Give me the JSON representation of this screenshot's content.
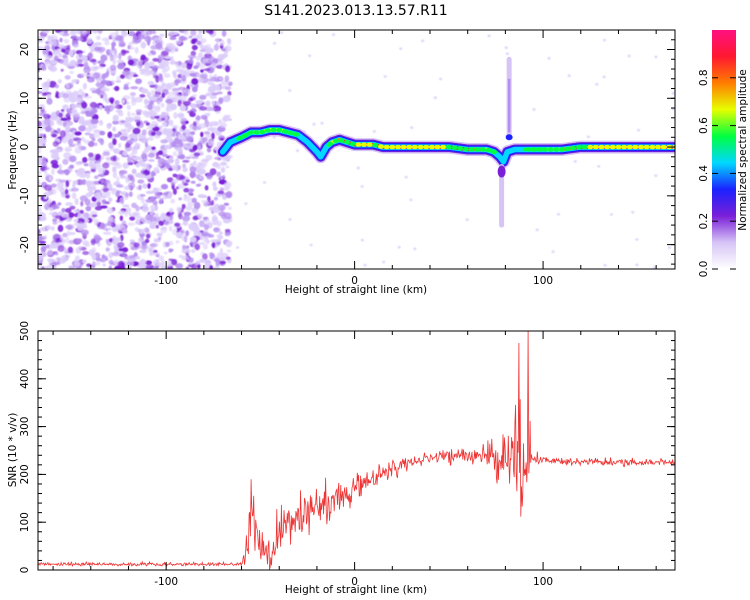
{
  "chart_data": [
    {
      "type": "heatmap",
      "title": "S141.2023.013.13.57.R11",
      "xlabel": "Height of straight line (km)",
      "ylabel": "Frequency (Hz)",
      "xlim": [
        -168,
        170
      ],
      "ylim": [
        -25,
        24
      ],
      "x_ticks": [
        -100,
        0,
        100
      ],
      "y_ticks": [
        -20,
        -10,
        0,
        10,
        20
      ],
      "noise_region_x": [
        -168,
        -70
      ],
      "ridge": {
        "x": [
          -70,
          -66,
          -60,
          -55,
          -50,
          -45,
          -40,
          -35,
          -30,
          -25,
          -20,
          -18,
          -15,
          -12,
          -8,
          -4,
          0,
          5,
          10,
          15,
          20,
          30,
          40,
          50,
          60,
          70,
          74,
          77,
          79,
          81,
          85,
          90,
          100,
          110,
          120,
          130,
          140,
          150,
          160,
          170
        ],
        "freq": [
          -1,
          1,
          2,
          3,
          3,
          3.5,
          3.5,
          3,
          2.5,
          1,
          -1,
          -2,
          0,
          1,
          1.5,
          1,
          0.5,
          0.5,
          0.5,
          0,
          0,
          0,
          0,
          0,
          -0.5,
          -0.5,
          -1,
          -2,
          -3,
          -1,
          -0.5,
          -0.5,
          -0.5,
          -0.5,
          0,
          0,
          0,
          0,
          0,
          0
        ],
        "amplitude": [
          0.2,
          0.4,
          0.55,
          0.6,
          0.65,
          0.7,
          0.65,
          0.6,
          0.5,
          0.35,
          0.2,
          0.3,
          0.45,
          0.65,
          0.8,
          0.85,
          0.9,
          0.95,
          0.9,
          0.92,
          0.95,
          0.95,
          0.95,
          0.9,
          0.85,
          0.7,
          0.5,
          0.3,
          0.2,
          0.2,
          0.4,
          0.5,
          0.6,
          0.7,
          0.9,
          0.95,
          0.95,
          0.95,
          0.95,
          0.95
        ]
      },
      "spike_x": 82,
      "colorbar": {
        "label": "Normalized spectral amplitude",
        "range": [
          0.0,
          1.0
        ],
        "ticks": [
          0.0,
          0.2,
          0.4,
          0.6,
          0.8
        ],
        "tick_labels": [
          "0.0",
          "0.2",
          "0.4",
          "0.6",
          "0.8"
        ],
        "colormap": [
          "#ffffff",
          "#d6c4f6",
          "#7a1fd8",
          "#1a22ff",
          "#00d8ff",
          "#00ff40",
          "#e6ff00",
          "#ff7d00",
          "#ff1830",
          "#ff1080"
        ]
      }
    },
    {
      "type": "line",
      "xlabel": "Height of straight line (km)",
      "ylabel": "SNR (10 * v/v)",
      "xlim": [
        -168,
        170
      ],
      "ylim": [
        0,
        500
      ],
      "x_ticks": [
        -100,
        0,
        100
      ],
      "y_ticks": [
        0,
        100,
        200,
        300,
        400,
        500
      ],
      "color": "#ee3333",
      "envelope": {
        "x": [
          -168,
          -110,
          -70,
          -60,
          -57,
          -55,
          -50,
          -45,
          -40,
          -30,
          -20,
          -10,
          0,
          10,
          20,
          30,
          40,
          50,
          60,
          70,
          80,
          85,
          88,
          90,
          92,
          95,
          100,
          120,
          140,
          160,
          170
        ],
        "mean": [
          12,
          12,
          12,
          12,
          40,
          120,
          40,
          30,
          80,
          110,
          130,
          150,
          170,
          190,
          210,
          225,
          235,
          238,
          240,
          238,
          230,
          240,
          250,
          220,
          240,
          232,
          228,
          226,
          225,
          225,
          225
        ],
        "spread": [
          5,
          5,
          5,
          5,
          60,
          80,
          40,
          50,
          70,
          70,
          60,
          50,
          40,
          30,
          25,
          20,
          20,
          20,
          20,
          30,
          80,
          150,
          200,
          180,
          120,
          20,
          12,
          10,
          10,
          10,
          10
        ]
      },
      "peaks": [
        {
          "x": -55,
          "y": 190
        },
        {
          "x": 87,
          "y": 475
        },
        {
          "x": 92,
          "y": 500
        }
      ]
    }
  ]
}
